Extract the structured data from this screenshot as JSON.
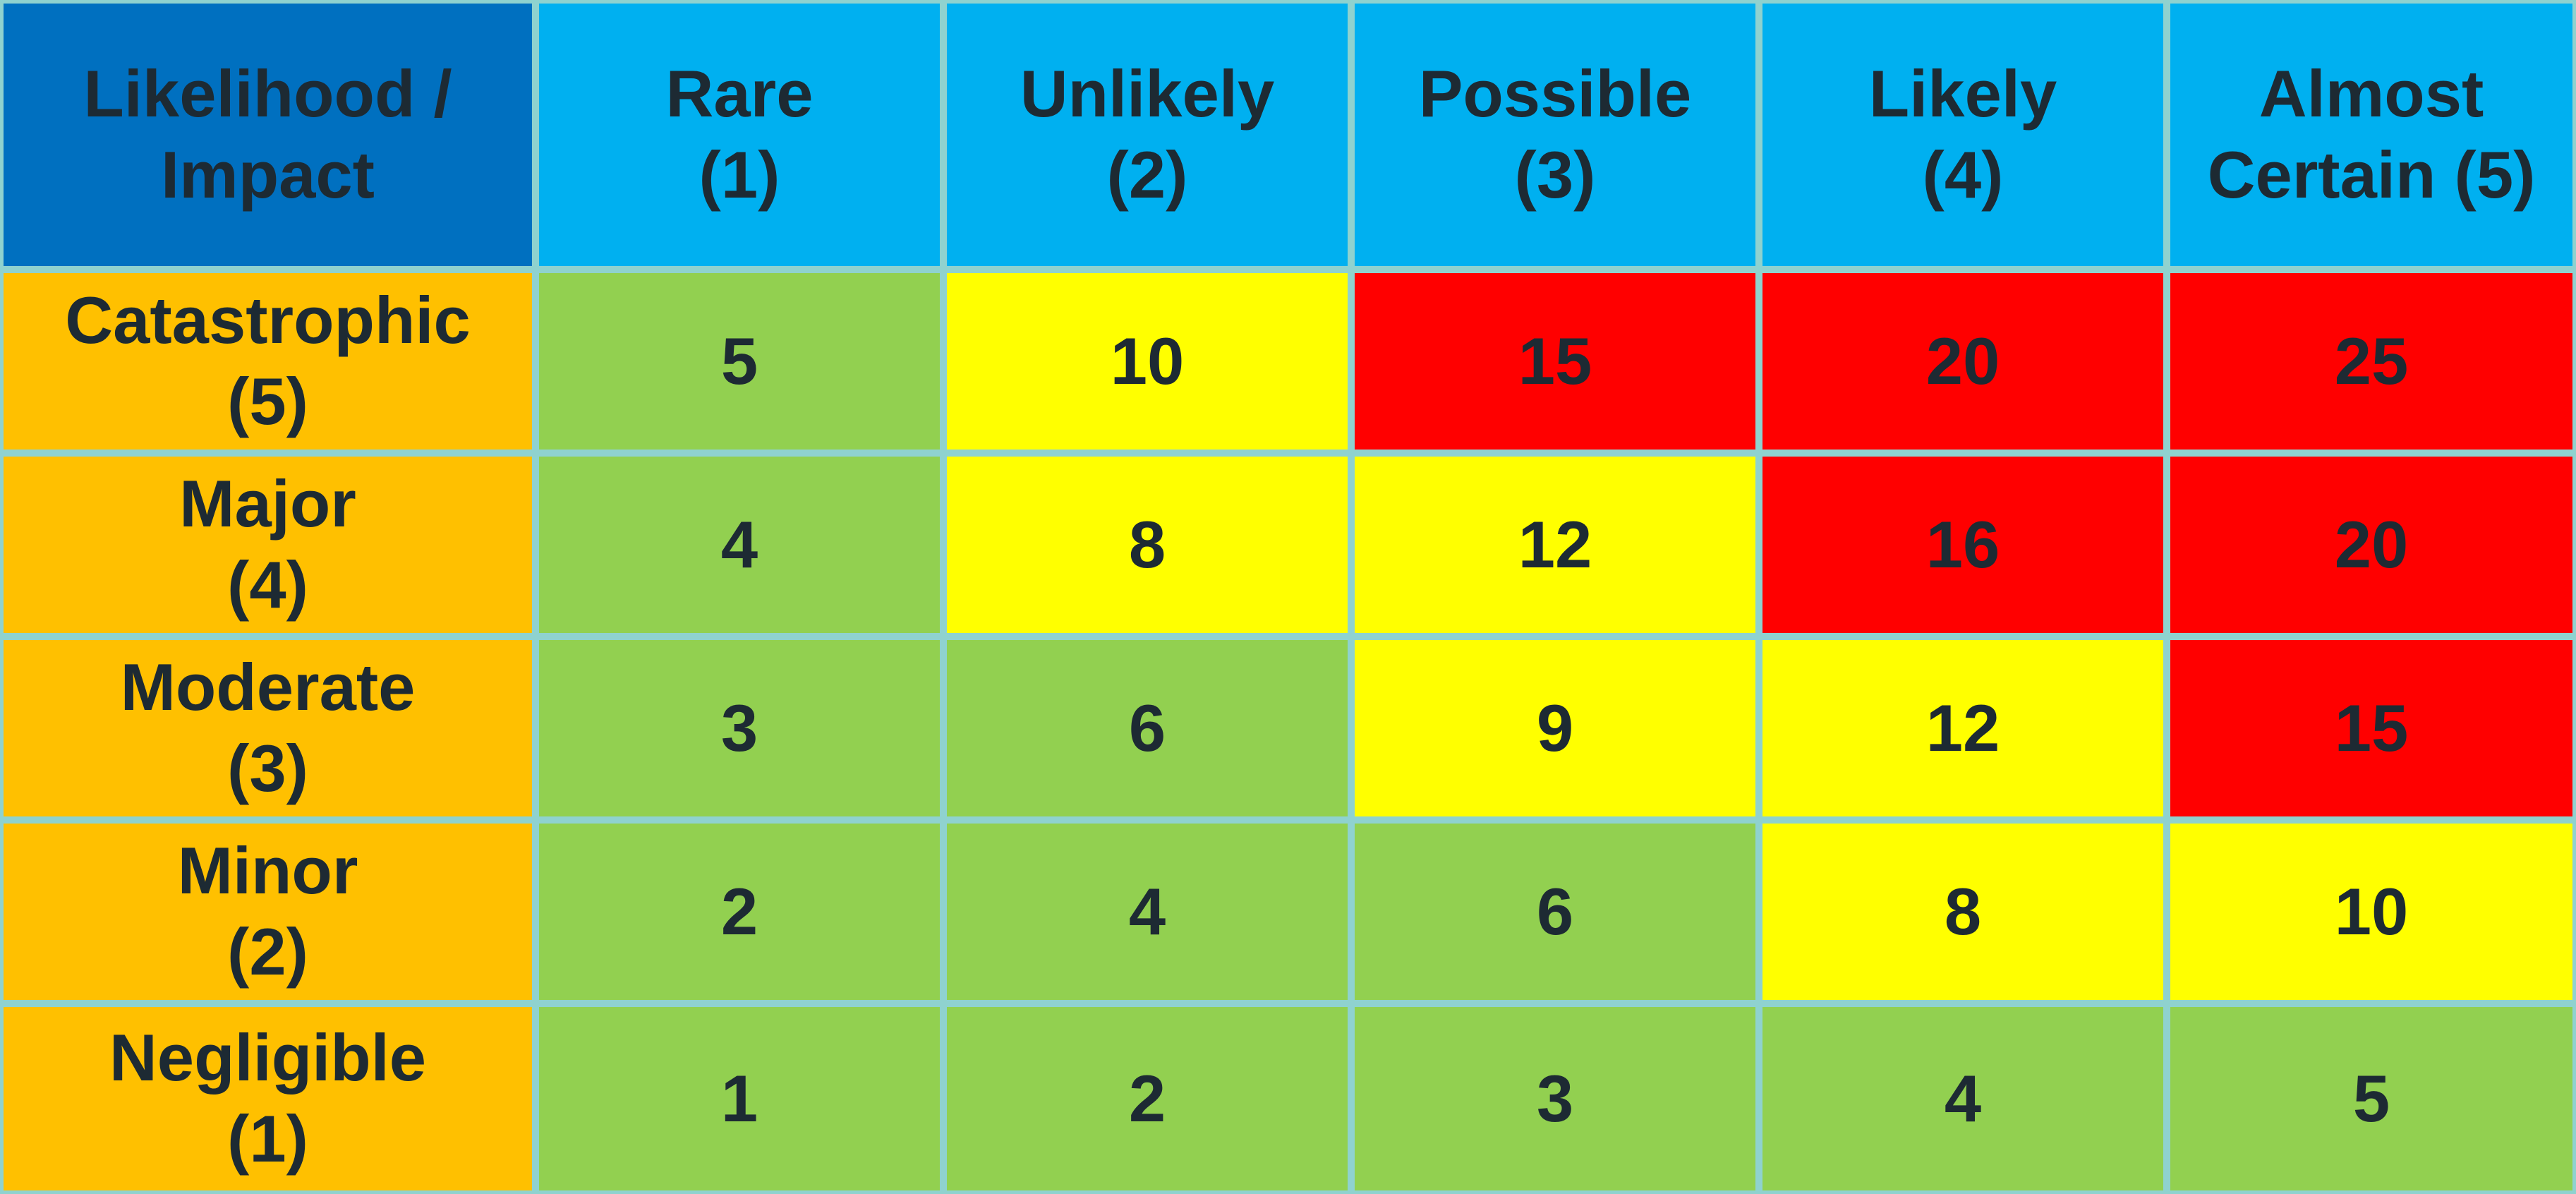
{
  "matrix": {
    "corner_label": {
      "line1": "Likelihood /",
      "line2": "Impact"
    },
    "columns": [
      {
        "line1": "Rare",
        "line2": "(1)"
      },
      {
        "line1": "Unlikely",
        "line2": "(2)"
      },
      {
        "line1": "Possible",
        "line2": "(3)"
      },
      {
        "line1": "Likely",
        "line2": "(4)"
      },
      {
        "line1": "Almost",
        "line2": "Certain (5)"
      }
    ],
    "rows": [
      {
        "line1": "Catastrophic",
        "line2": "(5)",
        "scores": [
          "5",
          "10",
          "15",
          "20",
          "25"
        ]
      },
      {
        "line1": "Major",
        "line2": "(4)",
        "scores": [
          "4",
          "8",
          "12",
          "16",
          "20"
        ]
      },
      {
        "line1": "Moderate",
        "line2": "(3)",
        "scores": [
          "3",
          "6",
          "9",
          "12",
          "15"
        ]
      },
      {
        "line1": "Minor",
        "line2": "(2)",
        "scores": [
          "2",
          "4",
          "6",
          "8",
          "10"
        ]
      },
      {
        "line1": "Negligible",
        "line2": "(1)",
        "scores": [
          "1",
          "2",
          "3",
          "4",
          "5"
        ]
      }
    ]
  },
  "colors": {
    "border": "#8FD2CF",
    "corner": "#0070C0",
    "column_header": "#00B0F0",
    "row_header": "#FFC000",
    "low": "#92D050",
    "medium": "#FFFF00",
    "high": "#FF0000",
    "text": "#1D2A33"
  }
}
